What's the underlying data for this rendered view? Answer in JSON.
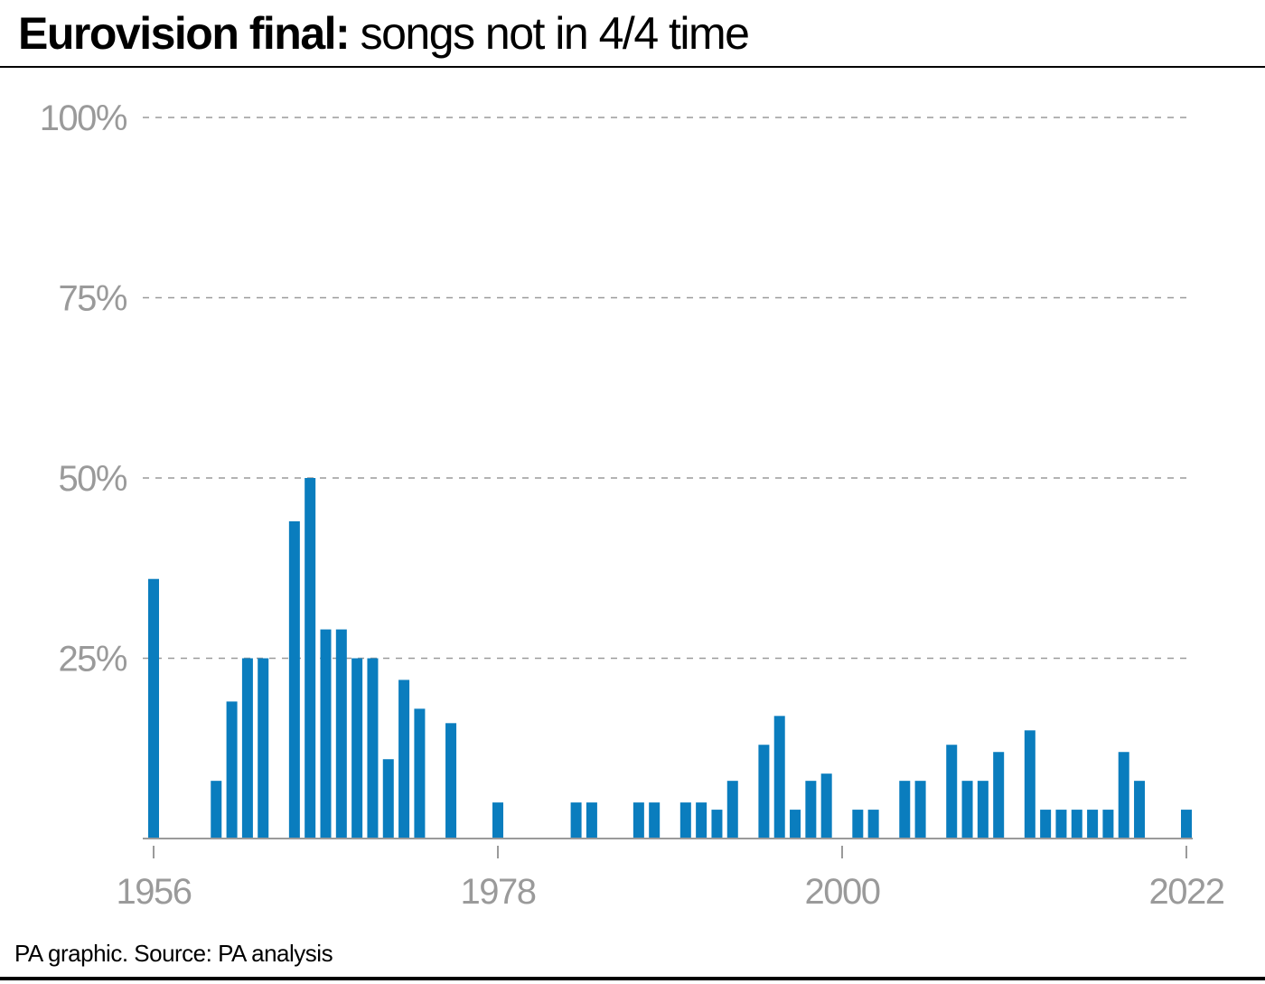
{
  "title": {
    "bold": "Eurovision final:",
    "rest": " songs not in 4/4 time"
  },
  "source": "PA graphic. Source: PA analysis",
  "colors": {
    "bar": "#0a7dbe",
    "grid": "#9a9a9a",
    "tick_label": "#9a9a9a",
    "axis": "#9a9a9a",
    "text": "#000000"
  },
  "chart_data": {
    "type": "bar",
    "title": "Eurovision final: songs not in 4/4 time",
    "xlabel": "",
    "ylabel": "",
    "ylim": [
      0,
      100
    ],
    "yticks": [
      25,
      50,
      75,
      100
    ],
    "ytick_labels": [
      "25%",
      "50%",
      "75%",
      "100%"
    ],
    "xtick_labels": [
      "1956",
      "1978",
      "2000",
      "2022"
    ],
    "grid": "horizontal dashed",
    "categories": [
      1956,
      1957,
      1958,
      1959,
      1960,
      1961,
      1962,
      1963,
      1964,
      1965,
      1966,
      1967,
      1968,
      1969,
      1970,
      1971,
      1972,
      1973,
      1974,
      1975,
      1976,
      1977,
      1978,
      1979,
      1980,
      1981,
      1982,
      1983,
      1984,
      1985,
      1986,
      1987,
      1988,
      1989,
      1990,
      1991,
      1992,
      1993,
      1994,
      1995,
      1996,
      1997,
      1998,
      1999,
      2000,
      2001,
      2002,
      2003,
      2004,
      2005,
      2006,
      2007,
      2008,
      2009,
      2010,
      2011,
      2012,
      2013,
      2014,
      2015,
      2016,
      2017,
      2018,
      2019,
      2021,
      2022
    ],
    "values": [
      36,
      0,
      0,
      0,
      8,
      19,
      25,
      25,
      0,
      44,
      50,
      29,
      29,
      25,
      25,
      11,
      22,
      18,
      0,
      16,
      0,
      0,
      5,
      0,
      0,
      0,
      0,
      5,
      5,
      0,
      0,
      5,
      5,
      0,
      5,
      5,
      4,
      8,
      0,
      13,
      17,
      4,
      8,
      9,
      0,
      4,
      4,
      0,
      8,
      8,
      0,
      13,
      8,
      8,
      12,
      0,
      15,
      4,
      4,
      4,
      4,
      4,
      12,
      8,
      0,
      4
    ]
  }
}
